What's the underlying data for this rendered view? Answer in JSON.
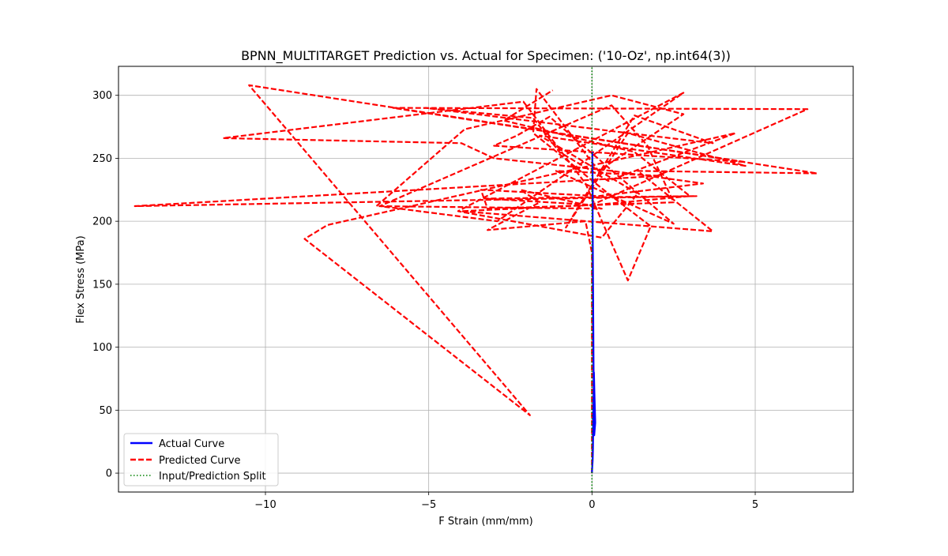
{
  "chart_data": {
    "type": "line",
    "title": "BPNN_MULTITARGET Prediction vs. Actual for Specimen: ('10-Oz', np.int64(3))",
    "xlabel": "F Strain (mm/mm)",
    "ylabel": "Flex Stress (MPa)",
    "xlim": [
      -14.5,
      8.0
    ],
    "ylim": [
      -15,
      323
    ],
    "xticks": [
      -10,
      -5,
      0,
      5
    ],
    "xtick_labels": [
      "−10",
      "−5",
      "0",
      "5"
    ],
    "yticks": [
      0,
      50,
      100,
      150,
      200,
      250,
      300
    ],
    "ytick_labels": [
      "0",
      "50",
      "100",
      "150",
      "200",
      "250",
      "300"
    ],
    "grid": true,
    "legend_position": "lower-left",
    "series": [
      {
        "name": "Actual Curve",
        "color": "#0000ff",
        "style": "solid",
        "x": [
          0,
          0.01,
          0.02,
          0.03,
          0.04,
          0.05,
          0.06,
          0.08,
          0.1,
          0.07,
          0.05,
          0.04,
          0.03,
          0.02,
          0.02,
          0.01
        ],
        "y": [
          0,
          5,
          10,
          20,
          40,
          60,
          80,
          60,
          40,
          30,
          80,
          120,
          160,
          200,
          230,
          255
        ]
      },
      {
        "name": "Predicted Curve",
        "color": "#ff0000",
        "style": "dashed",
        "x": [
          0,
          0,
          -0.2,
          -3.2,
          -1.6,
          -2.2,
          0.3,
          -6.6,
          -3.9,
          0.6,
          2.8,
          0.2,
          -1.7,
          -1.8,
          0.5,
          1.8,
          1.1,
          -0.2,
          -2.1,
          -11.3,
          -4.0,
          -3.0,
          0.6,
          3.4,
          0.2,
          -3.4,
          -3.2,
          2.5,
          1.7,
          0.6,
          -6.5,
          -2.9,
          2.8,
          -1.9,
          -4.1,
          0.3,
          1.4,
          -1.6,
          4.7,
          1.1,
          -0.8,
          1.3,
          3.7,
          1.1,
          -5.1,
          -1.8,
          -1.0,
          0.5,
          4.4,
          -8.1,
          -8.8,
          -1.9,
          -10.5,
          4.7,
          -3.0,
          -2.3,
          -1.3,
          2.5,
          -1.1,
          2.1,
          -14.0,
          3.2,
          -3.3,
          0.0,
          6.6,
          -6.1,
          6.9,
          1.4,
          3.7,
          -4.0,
          0.1,
          3.0,
          1.3,
          -2.7,
          -1.2
        ],
        "y": [
          0,
          175,
          200,
          193,
          215,
          225,
          210,
          212,
          273,
          300,
          285,
          240,
          305,
          270,
          222,
          196,
          153,
          230,
          295,
          266,
          262,
          250,
          240,
          230,
          220,
          225,
          210,
          215,
          260,
          292,
          212,
          200,
          302,
          238,
          208,
          187,
          222,
          268,
          244,
          270,
          195,
          284,
          262,
          270,
          290,
          282,
          255,
          232,
          270,
          197,
          186,
          46,
          308,
          247,
          260,
          268,
          283,
          198,
          240,
          236,
          212,
          220,
          218,
          213,
          289,
          290,
          238,
          240,
          192,
          208,
          213,
          220,
          255,
          280,
          304
        ]
      },
      {
        "name": "Input/Prediction Split",
        "color": "#008000",
        "style": "dotted",
        "x": [
          0,
          0
        ],
        "y": [
          -15,
          323
        ]
      }
    ]
  }
}
